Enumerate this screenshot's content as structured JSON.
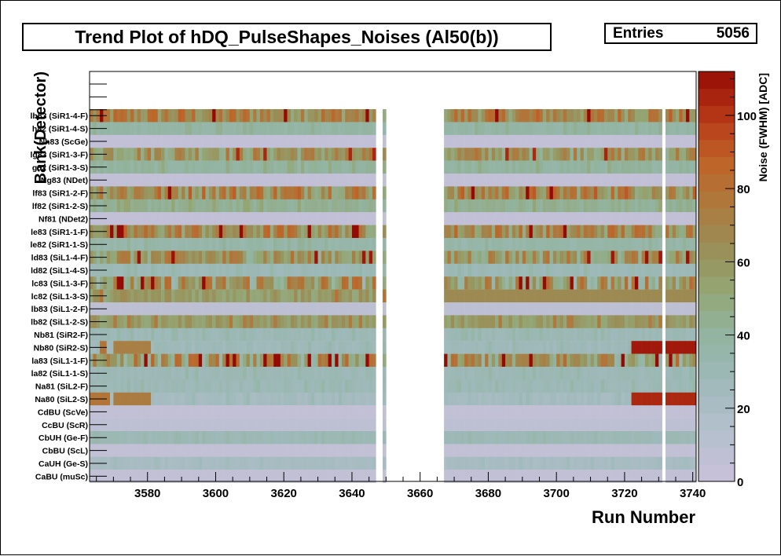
{
  "title": "Trend Plot of hDQ_PulseShapes_Noises (Al50(b))",
  "stats": {
    "label": "Entries",
    "value": "5056"
  },
  "chart_data": {
    "type": "heatmap",
    "title": "Trend Plot of hDQ_PulseShapes_Noises (Al50(b))",
    "xlabel": "Run Number",
    "ylabel": "Bank(Detector)",
    "zlabel": "Noise (FWHM) [ADC]",
    "xlim": [
      3563,
      3741
    ],
    "zlim": [
      0,
      112
    ],
    "x_ticks": [
      3580,
      3600,
      3620,
      3640,
      3660,
      3680,
      3700,
      3720,
      3740
    ],
    "z_ticks": [
      0,
      20,
      40,
      60,
      80,
      100
    ],
    "gap_runs": [
      [
        3647,
        3649
      ],
      [
        3650,
        3667
      ],
      [
        3731,
        3732
      ]
    ],
    "rows": [
      {
        "label": "lh83 (SiR1-4-F)",
        "noise": 70,
        "var": 22
      },
      {
        "label": "h82 (SiR1-4-S)",
        "noise": 38,
        "var": 3
      },
      {
        "label": "Nh83 (ScGe)",
        "noise": 5,
        "var": 0
      },
      {
        "label": "lg83 (SiR1-3-F)",
        "noise": 62,
        "var": 20
      },
      {
        "label": "g82 (SiR1-3-S)",
        "noise": 40,
        "var": 4
      },
      {
        "label": "Ng83 (NDet)",
        "noise": 5,
        "var": 0
      },
      {
        "label": "lf83 (SiR1-2-F)",
        "noise": 70,
        "var": 24
      },
      {
        "label": "lf82 (SiR1-2-S)",
        "noise": 44,
        "var": 4
      },
      {
        "label": "Nf81 (NDet2)",
        "noise": 5,
        "var": 0
      },
      {
        "label": "le83 (SiR1-1-F)",
        "noise": 68,
        "var": 22
      },
      {
        "label": "le82 (SiR1-1-S)",
        "noise": 36,
        "var": 3
      },
      {
        "label": "ld83 (SiL1-4-F)",
        "noise": 62,
        "var": 22
      },
      {
        "label": "ld82 (SiL1-4-S)",
        "noise": 30,
        "var": 3
      },
      {
        "label": "lc83 (SiL1-3-F)",
        "noise": 60,
        "var": 30
      },
      {
        "label": "lc82 (SiL1-3-S)",
        "noise": 58,
        "var": 10
      },
      {
        "label": "lb83 (SiL1-2-F)",
        "noise": 8,
        "var": 0
      },
      {
        "label": "lb82 (SiL1-2-S)",
        "noise": 58,
        "var": 8
      },
      {
        "label": "Nb81 (SiR2-F)",
        "noise": 30,
        "var": 3
      },
      {
        "label": "Nb80 (SiR2-S)",
        "noise": 28,
        "var": 3
      },
      {
        "label": "la83 (SiL1-1-F)",
        "noise": 62,
        "var": 28
      },
      {
        "label": "la82 (SiL1-1-S)",
        "noise": 30,
        "var": 3
      },
      {
        "label": "Na81 (SiL2-F)",
        "noise": 30,
        "var": 3
      },
      {
        "label": "Na80 (SiL2-S)",
        "noise": 24,
        "var": 3
      },
      {
        "label": "CdBU (ScVe)",
        "noise": 6,
        "var": 0
      },
      {
        "label": "CcBU (ScR)",
        "noise": 8,
        "var": 0
      },
      {
        "label": "CbUH (Ge-F)",
        "noise": 30,
        "var": 2
      },
      {
        "label": "CbBU (ScL)",
        "noise": 6,
        "var": 0
      },
      {
        "label": "CaUH (Ge-S)",
        "noise": 22,
        "var": 2
      },
      {
        "label": "CaBU (muSc)",
        "noise": 6,
        "var": 0
      }
    ],
    "hot_spots": [
      {
        "row": 18,
        "runs": [
          3566,
          3568
        ],
        "noise": 78
      },
      {
        "row": 18,
        "runs": [
          3570,
          3581
        ],
        "noise": 72
      },
      {
        "row": 18,
        "runs": [
          3722,
          3741
        ],
        "noise": 108
      },
      {
        "row": 22,
        "runs": [
          3563,
          3569
        ],
        "noise": 78
      },
      {
        "row": 22,
        "runs": [
          3570,
          3581
        ],
        "noise": 74
      },
      {
        "row": 22,
        "runs": [
          3722,
          3741
        ],
        "noise": 104
      },
      {
        "row": 14,
        "runs": [
          3667,
          3741
        ],
        "noise": 66
      }
    ]
  }
}
